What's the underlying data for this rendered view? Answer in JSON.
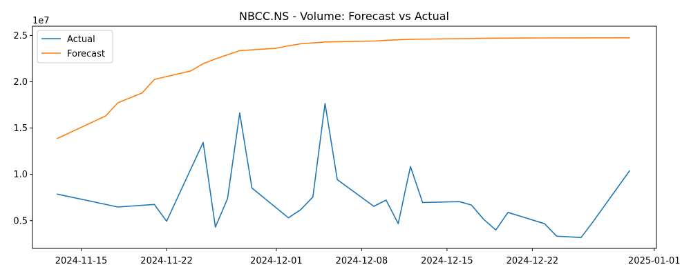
{
  "chart_data": {
    "type": "line",
    "title": "NBCC.NS - Volume: Forecast vs Actual",
    "xlabel": "",
    "ylabel": "",
    "y_multiplier_label": "1e7",
    "x_ticks": [
      "2024-11-15",
      "2024-11-22",
      "2024-12-01",
      "2024-12-08",
      "2024-12-15",
      "2024-12-22",
      "2025-01-01"
    ],
    "y_ticks": [
      "0.5",
      "1.0",
      "1.5",
      "2.0",
      "2.5"
    ],
    "ylim": [
      0.2,
      2.6
    ],
    "xlim": [
      "2024-11-11",
      "2025-01-01"
    ],
    "grid": false,
    "legend_position": "top-left",
    "series": [
      {
        "name": "Actual",
        "color": "#1f77b4",
        "points": [
          [
            "2024-11-13",
            0.787
          ],
          [
            "2024-11-18",
            0.647
          ],
          [
            "2024-11-21",
            0.675
          ],
          [
            "2024-11-22",
            0.494
          ],
          [
            "2024-11-25",
            1.345
          ],
          [
            "2024-11-26",
            0.43
          ],
          [
            "2024-11-27",
            0.738
          ],
          [
            "2024-11-28",
            1.662
          ],
          [
            "2024-11-29",
            0.852
          ],
          [
            "2024-12-02",
            0.53
          ],
          [
            "2024-12-03",
            0.619
          ],
          [
            "2024-12-04",
            0.756
          ],
          [
            "2024-12-05",
            1.765
          ],
          [
            "2024-12-06",
            0.943
          ],
          [
            "2024-12-09",
            0.655
          ],
          [
            "2024-12-10",
            0.722
          ],
          [
            "2024-12-11",
            0.468
          ],
          [
            "2024-12-12",
            1.085
          ],
          [
            "2024-12-13",
            0.696
          ],
          [
            "2024-12-16",
            0.705
          ],
          [
            "2024-12-17",
            0.669
          ],
          [
            "2024-12-18",
            0.515
          ],
          [
            "2024-12-19",
            0.399
          ],
          [
            "2024-12-20",
            0.589
          ],
          [
            "2024-12-23",
            0.467
          ],
          [
            "2024-12-24",
            0.332
          ],
          [
            "2024-12-26",
            0.318
          ],
          [
            "2024-12-27",
            0.492
          ],
          [
            "2024-12-30",
            1.042
          ]
        ]
      },
      {
        "name": "Forecast",
        "color": "#ff7f0e",
        "points": [
          [
            "2024-11-13",
            1.385
          ],
          [
            "2024-11-17",
            1.631
          ],
          [
            "2024-11-18",
            1.773
          ],
          [
            "2024-11-20",
            1.88
          ],
          [
            "2024-11-21",
            2.025
          ],
          [
            "2024-11-24",
            2.118
          ],
          [
            "2024-11-25",
            2.195
          ],
          [
            "2024-11-26",
            2.247
          ],
          [
            "2024-11-28",
            2.336
          ],
          [
            "2024-12-01",
            2.362
          ],
          [
            "2024-12-02",
            2.388
          ],
          [
            "2024-12-03",
            2.41
          ],
          [
            "2024-12-05",
            2.43
          ],
          [
            "2024-12-09",
            2.44
          ],
          [
            "2024-12-10",
            2.448
          ],
          [
            "2024-12-12",
            2.459
          ],
          [
            "2024-12-16",
            2.466
          ],
          [
            "2024-12-19",
            2.471
          ],
          [
            "2024-12-23",
            2.473
          ],
          [
            "2024-12-26",
            2.474
          ],
          [
            "2024-12-30",
            2.475
          ]
        ]
      }
    ]
  }
}
